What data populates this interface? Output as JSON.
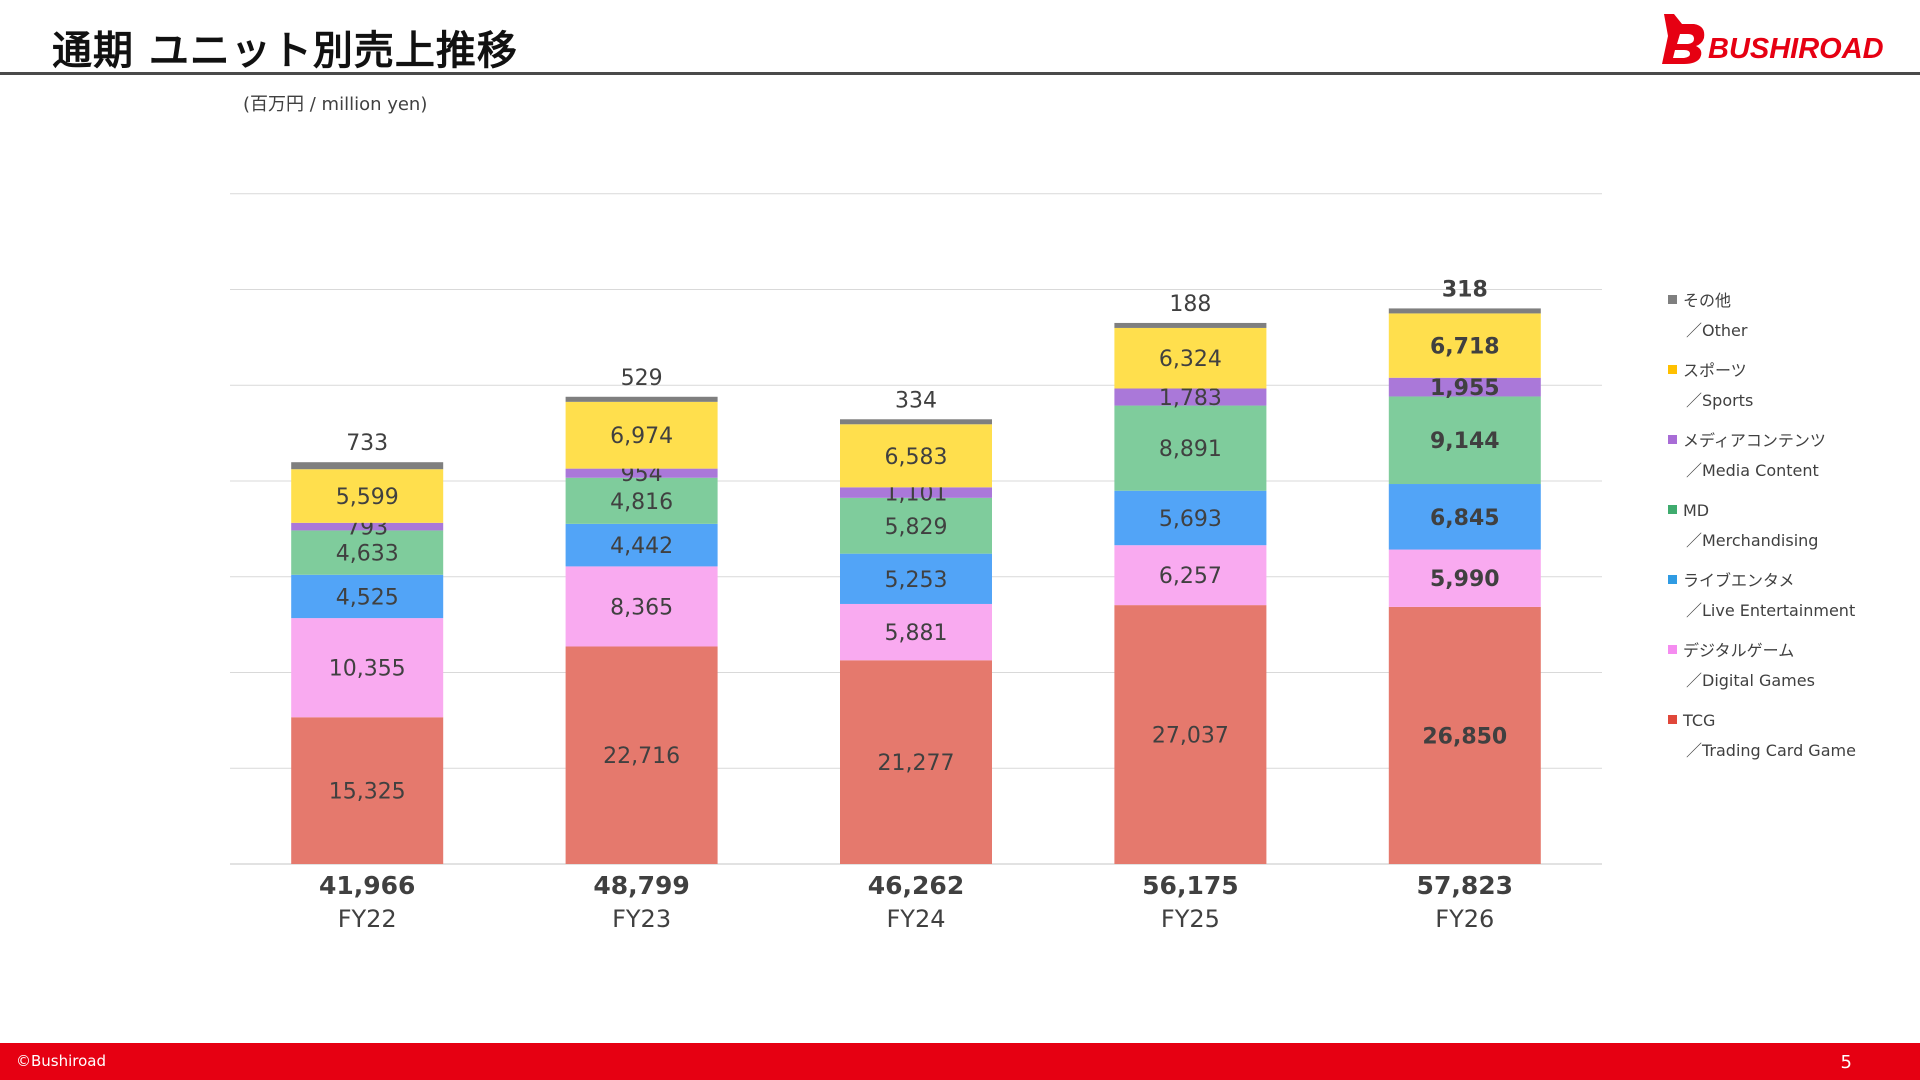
{
  "header": {
    "title": "通期 ユニット別売上推移",
    "logo_text": "BUSHIROAD"
  },
  "unit_label": "(百万円 / million yen)",
  "legend": {
    "items": [
      {
        "jp": "その他",
        "en": "／Other",
        "color": "#7f7f7f"
      },
      {
        "jp": "スポーツ",
        "en": "／Sports",
        "color": "#ffc000"
      },
      {
        "jp": "メディアコンテンツ",
        "en": "／Media Content",
        "color": "#a86cd6"
      },
      {
        "jp": "MD",
        "en": "／Merchandising",
        "color": "#3fab6e"
      },
      {
        "jp": "ライブエンタメ",
        "en": "／Live Entertainment",
        "color": "#2f9be3"
      },
      {
        "jp": "デジタルゲーム",
        "en": "／Digital Games",
        "color": "#f58cf0"
      },
      {
        "jp": "TCG",
        "en": "／Trading Card Game",
        "color": "#e0473a"
      }
    ]
  },
  "chart_data": {
    "type": "bar",
    "stacked": true,
    "categories": [
      "FY22",
      "FY23",
      "FY24",
      "FY25",
      "FY26"
    ],
    "totals": [
      "41,966",
      "48,799",
      "46,262",
      "56,175",
      "57,823"
    ],
    "grid": true,
    "legend_position": "right",
    "highlight_category": "FY26",
    "series": [
      {
        "name": "TCG",
        "color": "#e5796d",
        "values": [
          15325,
          22716,
          21277,
          27037,
          26850
        ],
        "labels": [
          "15,325",
          "22,716",
          "21,277",
          "27,037",
          "26,850"
        ]
      },
      {
        "name": "デジタルゲーム",
        "color": "#f9aaf0",
        "values": [
          10355,
          8365,
          5881,
          6257,
          5990
        ],
        "labels": [
          "10,355",
          "8,365",
          "5,881",
          "6,257",
          "5,990"
        ]
      },
      {
        "name": "ライブエンタメ",
        "color": "#52a4f7",
        "values": [
          4525,
          4442,
          5253,
          5693,
          6845
        ],
        "labels": [
          "4,525",
          "4,442",
          "5,253",
          "5,693",
          "6,845"
        ]
      },
      {
        "name": "MD",
        "color": "#7fcc9c",
        "values": [
          4633,
          4816,
          5829,
          8891,
          9144
        ],
        "labels": [
          "4,633",
          "4,816",
          "5,829",
          "8,891",
          "9,144"
        ]
      },
      {
        "name": "メディアコンテンツ",
        "color": "#aa78d9",
        "values": [
          793,
          954,
          1101,
          1783,
          1955
        ],
        "labels": [
          "793",
          "954",
          "1,101",
          "1,783",
          "1,955"
        ]
      },
      {
        "name": "スポーツ",
        "color": "#ffdf4d",
        "values": [
          5599,
          6974,
          6583,
          6324,
          6718
        ],
        "labels": [
          "5,599",
          "6,974",
          "6,583",
          "6,324",
          "6,718"
        ]
      },
      {
        "name": "その他",
        "color": "#7f7f7f",
        "values": [
          733,
          529,
          334,
          188,
          318
        ],
        "labels": [
          "733",
          "529",
          "334",
          "188",
          "318"
        ]
      }
    ]
  },
  "footer": {
    "copyright": "©Bushiroad",
    "page_number": "5"
  }
}
